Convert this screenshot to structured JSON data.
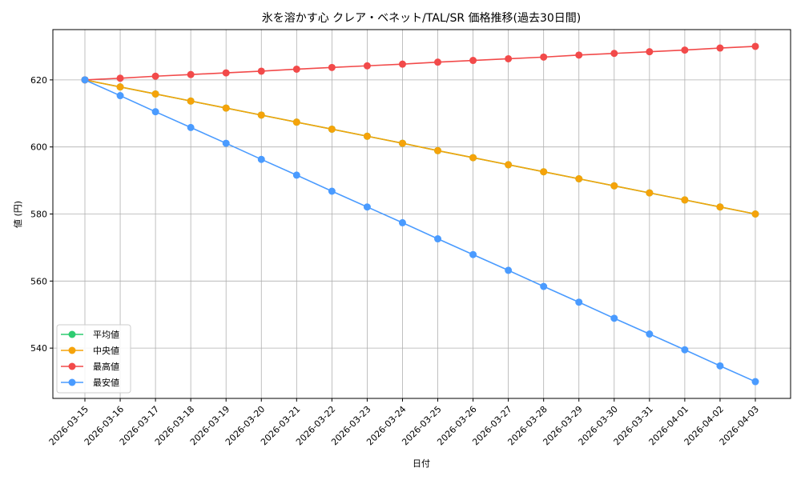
{
  "chart_data": {
    "type": "line",
    "title": "氷を溶かす心 クレア・ベネット/TAL/SR 価格推移(過去30日間)",
    "xlabel": "日付",
    "ylabel": "値 (円)",
    "ylim": [
      525,
      635
    ],
    "yticks": [
      540,
      560,
      580,
      600,
      620
    ],
    "grid": true,
    "legend_position": "lower-left",
    "x": [
      "2026-03-15",
      "2026-03-16",
      "2026-03-17",
      "2026-03-18",
      "2026-03-19",
      "2026-03-20",
      "2026-03-21",
      "2026-03-22",
      "2026-03-23",
      "2026-03-24",
      "2026-03-25",
      "2026-03-26",
      "2026-03-27",
      "2026-03-28",
      "2026-03-29",
      "2026-03-30",
      "2026-03-31",
      "2026-04-01",
      "2026-04-02",
      "2026-04-03"
    ],
    "series": [
      {
        "name": "平均値",
        "color": "#2ecc71",
        "values": [
          620,
          617.9,
          615.8,
          613.7,
          611.6,
          609.5,
          607.4,
          605.3,
          603.2,
          601.1,
          598.9,
          596.8,
          594.7,
          592.6,
          590.5,
          588.4,
          586.3,
          584.2,
          582.1,
          580
        ]
      },
      {
        "name": "中央値",
        "color": "#f5a30a",
        "values": [
          620,
          617.9,
          615.8,
          613.7,
          611.6,
          609.5,
          607.4,
          605.3,
          603.2,
          601.1,
          598.9,
          596.8,
          594.7,
          592.6,
          590.5,
          588.4,
          586.3,
          584.2,
          582.1,
          580
        ]
      },
      {
        "name": "最高値",
        "color": "#f24a4a",
        "values": [
          620,
          620.5,
          621.1,
          621.6,
          622.1,
          622.6,
          623.2,
          623.7,
          624.2,
          624.7,
          625.3,
          625.8,
          626.3,
          626.8,
          627.4,
          627.9,
          628.4,
          628.9,
          629.5,
          630
        ]
      },
      {
        "name": "最安値",
        "color": "#4a9bff",
        "values": [
          620,
          615.3,
          610.5,
          605.8,
          601.1,
          596.3,
          591.6,
          586.8,
          582.1,
          577.4,
          572.6,
          567.9,
          563.2,
          558.4,
          553.7,
          548.9,
          544.2,
          539.5,
          534.7,
          530
        ]
      }
    ]
  }
}
